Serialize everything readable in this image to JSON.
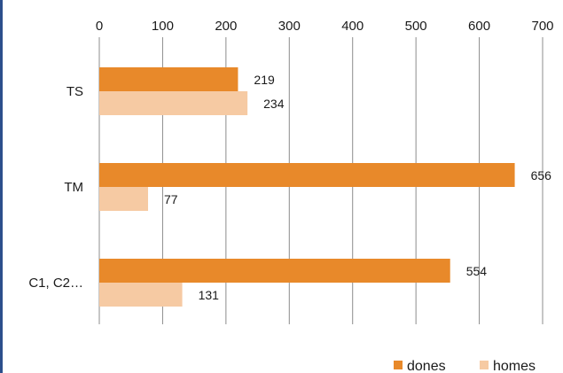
{
  "chart_data": {
    "type": "bar",
    "orientation": "horizontal",
    "categories": [
      "TS",
      "TM",
      "C1, C2…"
    ],
    "series": [
      {
        "name": "dones",
        "values": [
          219,
          656,
          554
        ],
        "color": "#e8892a"
      },
      {
        "name": "homes",
        "values": [
          234,
          77,
          131
        ],
        "color": "#f6caa3"
      }
    ],
    "xlim": [
      0,
      700
    ],
    "x_ticks": [
      0,
      100,
      200,
      300,
      400,
      500,
      600,
      700
    ],
    "x_axis_position": "top",
    "grid": true,
    "legend_position": "bottom-right"
  }
}
